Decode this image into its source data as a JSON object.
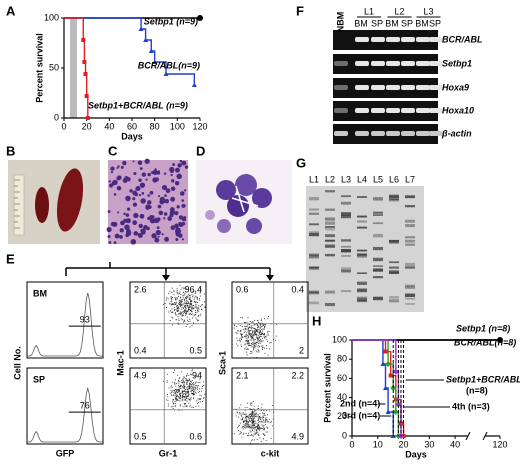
{
  "panel_labels": [
    "A",
    "B",
    "C",
    "D",
    "E",
    "F",
    "G",
    "H"
  ],
  "panel_a": {
    "type": "line",
    "ylabel": "Percent survival",
    "xlabel": "Days",
    "xlim": [
      0,
      120
    ],
    "ylim": [
      0,
      100
    ],
    "xticks": [
      0,
      20,
      40,
      60,
      80,
      100,
      120
    ],
    "yticks": [
      0,
      50,
      100
    ],
    "series": [
      {
        "name": "Setbp1 (n=9)",
        "color": "#000000",
        "marker": "circle",
        "x": [
          0,
          120
        ],
        "values": [
          100,
          100
        ]
      },
      {
        "name": "BCR/ABL(n=9)",
        "color": "#1f3fd0",
        "marker": "triangle",
        "x": [
          0,
          68,
          72,
          77,
          80,
          90,
          115
        ],
        "values": [
          100,
          89,
          78,
          67,
          56,
          44,
          33
        ]
      },
      {
        "name": "Setbp1+BCR/ABL (n=9)",
        "color": "#e02020",
        "marker": "square",
        "x": [
          0,
          17,
          18,
          19,
          20,
          21
        ],
        "values": [
          100,
          78,
          56,
          44,
          22,
          0
        ]
      }
    ]
  },
  "panel_e": {
    "rows": [
      "BM",
      "SP"
    ],
    "ylabels": [
      "Cell No.",
      "Mac-1",
      "Sca-1"
    ],
    "xlabels": [
      "GFP",
      "Gr-1",
      "c-kit"
    ],
    "histogram_gates": [
      "93",
      "76"
    ],
    "gr1_quadrants": [
      {
        "ul": "2.6",
        "ur": "96.4",
        "ll": "0.4",
        "lr": "0.5"
      },
      {
        "ul": "4.9",
        "ur": "94",
        "ll": "0.5",
        "lr": "0.6"
      }
    ],
    "ckit_quadrants": [
      {
        "ul": "0.6",
        "ur": "0.4",
        "lr": "2"
      },
      {
        "ul": "2.1",
        "ur": "2.2",
        "lr": "4.9"
      }
    ]
  },
  "panel_f": {
    "lanes": [
      "NBM",
      "L1",
      "L2",
      "L3"
    ],
    "sublanes": [
      "BM",
      "SP",
      "BM",
      "SP",
      "BM",
      "SP"
    ],
    "genes": [
      "BCR/ABL",
      "Setbp1",
      "Hoxa9",
      "Hoxa10",
      "β-actin"
    ]
  },
  "panel_g": {
    "lanes": [
      "L1",
      "L2",
      "L3",
      "L4",
      "L5",
      "L6",
      "L7"
    ]
  },
  "panel_h": {
    "type": "line",
    "ylabel": "Percent survival",
    "xlabel": "Days",
    "xlim": [
      0,
      120
    ],
    "xbreak": [
      45,
      115
    ],
    "ylim": [
      0,
      100
    ],
    "xticks": [
      0,
      10,
      20,
      30,
      40,
      120
    ],
    "yticks": [
      0,
      20,
      40,
      60,
      80,
      100
    ],
    "series": [
      {
        "name": "Setbp1 (n=8)",
        "color": "#000000",
        "marker": "circle",
        "x": [
          0,
          120
        ],
        "values": [
          100,
          100
        ]
      },
      {
        "name": "BCR/ABL(n=8)",
        "color": "#000000",
        "marker": "none",
        "x": [
          0,
          120
        ],
        "values": [
          100,
          100
        ]
      },
      {
        "name": "Setbp1+BCR/ABL",
        "n_label": "(n=8)",
        "color": "#e02020",
        "marker": "square",
        "x": [
          0,
          13,
          15,
          17,
          19,
          20
        ],
        "values": [
          100,
          88,
          63,
          38,
          13,
          0
        ]
      },
      {
        "name": "2nd (n=4)",
        "color": "#1f3fd0",
        "marker": "triangle",
        "x": [
          0,
          12,
          13,
          14,
          16
        ],
        "values": [
          100,
          75,
          50,
          25,
          0
        ]
      },
      {
        "name": "3rd (n=4)",
        "color": "#2e9e2e",
        "marker": "diamond",
        "x": [
          0,
          14,
          16,
          17,
          18
        ],
        "values": [
          100,
          75,
          50,
          25,
          0
        ]
      },
      {
        "name": "4th (n=3)",
        "color": "#9b30d9",
        "marker": "diamond",
        "x": [
          0,
          17,
          18,
          19
        ],
        "values": [
          100,
          67,
          33,
          0
        ]
      }
    ]
  }
}
